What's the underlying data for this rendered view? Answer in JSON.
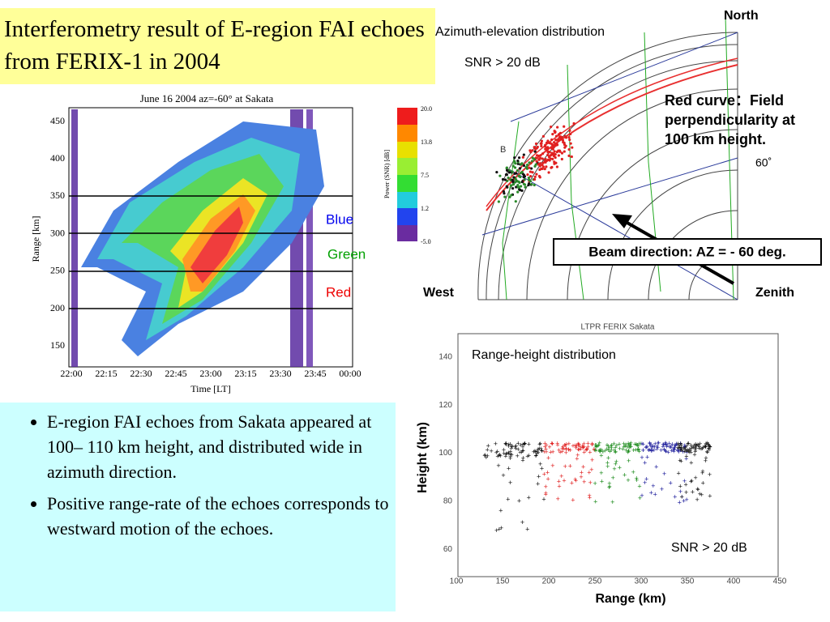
{
  "title": "Interferometry result of E-region FAI echoes from FERIX-1 in 2004",
  "rti": {
    "title": "June 16 2004 az=-60°    at Sakata",
    "y_label": "Range [km]",
    "x_label": "Time [LT]",
    "y_ticks": [
      "450",
      "400",
      "350",
      "300",
      "250",
      "200",
      "150"
    ],
    "x_ticks": [
      "22:00",
      "22:15",
      "22:30",
      "22:45",
      "23:00",
      "23:15",
      "23:30",
      "23:45",
      "00:00"
    ],
    "colorbar_label": "Power (SNR) [dB]",
    "colorbar_ticks": [
      "20.0",
      "13.8",
      "7.5",
      "1.2",
      "-5.0"
    ],
    "line_labels": [
      "Blue",
      "Green",
      "Red"
    ]
  },
  "polar": {
    "title": "Azimuth-elevation distribution",
    "snr": "SNR > 20 dB",
    "north": "North",
    "west": "West",
    "zenith": "Zenith",
    "note": "Red curve：Field perpendicularity at 100 km height.",
    "elevation": "60˚",
    "marker": "B",
    "beam": "Beam direction: AZ = - 60 deg."
  },
  "range_height": {
    "title": "LTPR FERIX Sakata",
    "subtitle": "Range-height distribution",
    "snr": "SNR > 20 dB",
    "y_label": "Height (km)",
    "x_label": "Range (km)",
    "y_ticks": [
      "140",
      "120",
      "100",
      "80",
      "60"
    ],
    "x_ticks": [
      "100",
      "150",
      "200",
      "250",
      "300",
      "350",
      "400",
      "450"
    ]
  },
  "bullets": [
    "E-region FAI echoes from Sakata appeared at 100– 110 km height, and distributed wide in azimuth direction.",
    "Positive range-rate of the echoes corresponds to westward motion of the echoes."
  ]
}
